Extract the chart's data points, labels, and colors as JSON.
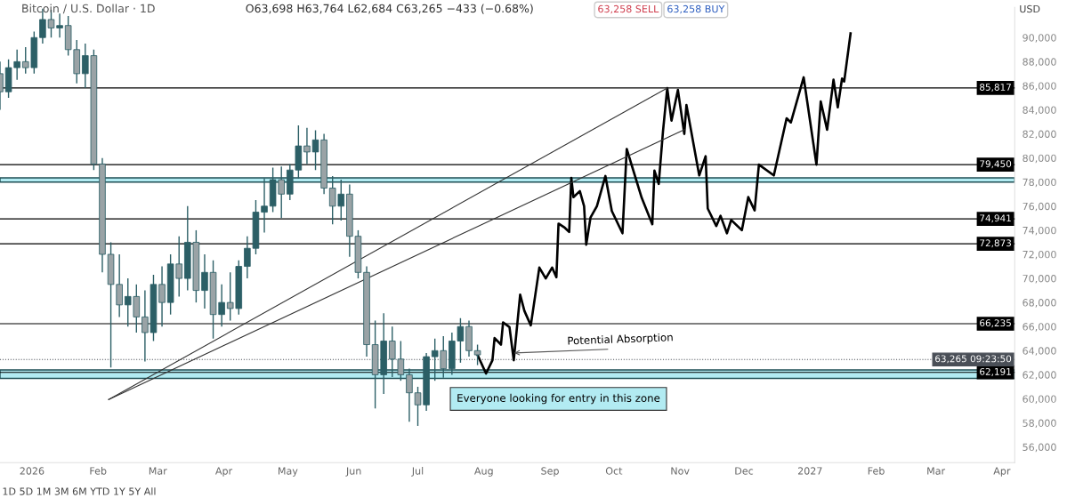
{
  "chart_data": {
    "type": "candlestick",
    "title": "Bitcoin / U.S. Dollar · 1D",
    "subtitle": "O63,698 H63,764 L62,684 C63,265 −433 (−0.68%)",
    "xlim": [
      "2025-12-17",
      "2027-04-07"
    ],
    "xticks": [
      {
        "value": "2026-01-01",
        "label": "2026"
      },
      {
        "value": "2026-02-01",
        "label": "Feb"
      },
      {
        "value": "2026-03-01",
        "label": "Mar"
      },
      {
        "value": "2026-04-01",
        "label": "Apr"
      },
      {
        "value": "2026-05-01",
        "label": "May"
      },
      {
        "value": "2026-06-01",
        "label": "Jun"
      },
      {
        "value": "2026-07-01",
        "label": "Jul"
      },
      {
        "value": "2026-08-01",
        "label": "Aug"
      },
      {
        "value": "2026-09-01",
        "label": "Sep"
      },
      {
        "value": "2026-10-01",
        "label": "Oct"
      },
      {
        "value": "2026-11-01",
        "label": "Nov"
      },
      {
        "value": "2026-12-01",
        "label": "Dec"
      },
      {
        "value": "2027-01-01",
        "label": "2027"
      },
      {
        "value": "2027-02-01",
        "label": "Feb"
      },
      {
        "value": "2027-03-01",
        "label": "Mar"
      },
      {
        "value": "2027-04-01",
        "label": "Apr"
      }
    ],
    "ylim": [
      54700,
      92500
    ],
    "yticks": [
      {
        "value": 56000,
        "label": "56,000"
      },
      {
        "value": 58000,
        "label": "58,000"
      },
      {
        "value": 60000,
        "label": "60,000"
      },
      {
        "value": 62000,
        "label": "62,000"
      },
      {
        "value": 64000,
        "label": "64,000"
      },
      {
        "value": 66000,
        "label": "66,000"
      },
      {
        "value": 68000,
        "label": "68,000"
      },
      {
        "value": 70000,
        "label": "70,000"
      },
      {
        "value": 72000,
        "label": "72,000"
      },
      {
        "value": 74000,
        "label": "74,000"
      },
      {
        "value": 76000,
        "label": "76,000"
      },
      {
        "value": 78000,
        "label": "78,000"
      },
      {
        "value": 80000,
        "label": "80,000"
      },
      {
        "value": 82000,
        "label": "82,000"
      },
      {
        "value": 84000,
        "label": "84,000"
      },
      {
        "value": 86000,
        "label": "86,000"
      },
      {
        "value": 88000,
        "label": "88,000"
      },
      {
        "value": 90000,
        "label": "90,000"
      }
    ],
    "grid": false,
    "series": [
      {
        "type": "candlestick",
        "color": "#2c5f66",
        "x": [
          "2025-12-17",
          "2025-12-21",
          "2025-12-25",
          "2025-12-29",
          "2026-01-02",
          "2026-01-06",
          "2026-01-10",
          "2026-01-14",
          "2026-01-18",
          "2026-01-22",
          "2026-01-26",
          "2026-01-30",
          "2026-02-03",
          "2026-02-07",
          "2026-02-11",
          "2026-02-15",
          "2026-02-19",
          "2026-02-23",
          "2026-02-27",
          "2026-03-03",
          "2026-03-07",
          "2026-03-11",
          "2026-03-15",
          "2026-03-19",
          "2026-03-23",
          "2026-03-27",
          "2026-03-31",
          "2026-04-04",
          "2026-04-08",
          "2026-04-12",
          "2026-04-16",
          "2026-04-20",
          "2026-04-24",
          "2026-04-28",
          "2026-05-02",
          "2026-05-06",
          "2026-05-10",
          "2026-05-14",
          "2026-05-18",
          "2026-05-22",
          "2026-05-26",
          "2026-05-30",
          "2026-06-03",
          "2026-06-07",
          "2026-06-11",
          "2026-06-15",
          "2026-06-19",
          "2026-06-23",
          "2026-06-27",
          "2026-07-01",
          "2026-07-05",
          "2026-07-09",
          "2026-07-13",
          "2026-07-17",
          "2026-07-21",
          "2026-07-25",
          "2026-07-29"
        ],
        "ohlc": [
          [
            87000,
            88000,
            84000,
            85500
          ],
          [
            85500,
            88200,
            85000,
            87500
          ],
          [
            87500,
            89000,
            86500,
            88000
          ],
          [
            88000,
            89200,
            87000,
            87500
          ],
          [
            87500,
            90500,
            87000,
            90000
          ],
          [
            90000,
            92400,
            89500,
            91500
          ],
          [
            91500,
            92300,
            90000,
            90800
          ],
          [
            90800,
            92000,
            90000,
            91000
          ],
          [
            91000,
            91800,
            88500,
            89000
          ],
          [
            89000,
            89800,
            86200,
            87000
          ],
          [
            87000,
            89500,
            85800,
            88500
          ],
          [
            88500,
            89000,
            79000,
            79500
          ],
          [
            79500,
            80000,
            70500,
            72000
          ],
          [
            72000,
            73000,
            62600,
            69500
          ],
          [
            69500,
            72000,
            66800,
            67800
          ],
          [
            67800,
            70000,
            66000,
            68500
          ],
          [
            68500,
            69500,
            65500,
            66800
          ],
          [
            66800,
            69000,
            63100,
            65500
          ],
          [
            65500,
            70300,
            64800,
            69500
          ],
          [
            69500,
            71000,
            66000,
            68000
          ],
          [
            68000,
            72000,
            67000,
            71200
          ],
          [
            71200,
            73500,
            68500,
            70000
          ],
          [
            70000,
            76000,
            69000,
            73000
          ],
          [
            73000,
            74000,
            68000,
            69000
          ],
          [
            69000,
            72000,
            67500,
            70500
          ],
          [
            70500,
            71500,
            65000,
            67000
          ],
          [
            67000,
            69500,
            66000,
            68000
          ],
          [
            68000,
            70500,
            66500,
            67500
          ],
          [
            67500,
            71500,
            67000,
            71000
          ],
          [
            71000,
            73500,
            70000,
            72500
          ],
          [
            72500,
            76500,
            72000,
            75500
          ],
          [
            75500,
            78300,
            73800,
            76000
          ],
          [
            76000,
            79200,
            75500,
            78200
          ],
          [
            78200,
            79300,
            75000,
            77000
          ],
          [
            77000,
            79500,
            76500,
            79000
          ],
          [
            79000,
            82700,
            78300,
            81000
          ],
          [
            81000,
            82500,
            79500,
            80500
          ],
          [
            80500,
            82300,
            79000,
            81500
          ],
          [
            81500,
            82000,
            77000,
            77500
          ],
          [
            77500,
            78500,
            74500,
            76000
          ],
          [
            76000,
            78200,
            74800,
            77000
          ],
          [
            77000,
            77800,
            71800,
            73500
          ],
          [
            73500,
            74000,
            70000,
            70500
          ],
          [
            70500,
            71000,
            63500,
            64500
          ],
          [
            64500,
            66500,
            59200,
            62000
          ],
          [
            62000,
            67100,
            60400,
            64800
          ],
          [
            64800,
            66000,
            61800,
            63300
          ],
          [
            63300,
            64800,
            61500,
            62000
          ],
          [
            62000,
            62500,
            58100,
            60500
          ],
          [
            60500,
            61000,
            57750,
            59500
          ],
          [
            59500,
            63800,
            59000,
            63500
          ],
          [
            63500,
            65000,
            61500,
            64000
          ],
          [
            64000,
            65200,
            61750,
            62500
          ],
          [
            62500,
            65500,
            62000,
            64800
          ],
          [
            64800,
            66700,
            63000,
            66000
          ],
          [
            66000,
            66500,
            63500,
            64000
          ],
          [
            64000,
            64500,
            62800,
            63650
          ]
        ]
      },
      {
        "type": "line",
        "color": "#000000",
        "x": [
          "2026-07-29",
          "2026-08-02",
          "2026-08-05",
          "2026-08-06",
          "2026-08-09",
          "2026-08-10",
          "2026-08-13",
          "2026-08-15",
          "2026-08-18",
          "2026-08-20",
          "2026-08-23",
          "2026-08-27",
          "2026-08-30",
          "2026-09-02",
          "2026-09-04",
          "2026-09-05",
          "2026-09-08",
          "2026-09-10",
          "2026-09-11",
          "2026-09-12",
          "2026-09-15",
          "2026-09-17",
          "2026-09-18",
          "2026-09-20",
          "2026-09-23",
          "2026-09-27",
          "2026-09-30",
          "2026-10-05",
          "2026-10-07",
          "2026-10-14",
          "2026-10-19",
          "2026-10-20",
          "2026-10-22",
          "2026-10-24",
          "2026-10-26",
          "2026-10-28",
          "2026-10-31",
          "2026-11-03",
          "2026-11-04",
          "2026-11-10",
          "2026-11-13",
          "2026-11-14",
          "2026-11-18",
          "2026-11-20",
          "2026-11-23",
          "2026-11-25",
          "2026-11-30",
          "2026-12-03",
          "2026-12-06",
          "2026-12-08",
          "2026-12-15",
          "2026-12-21",
          "2026-12-23",
          "2026-12-29",
          "2027-01-04",
          "2027-01-06",
          "2027-01-09",
          "2027-01-12",
          "2027-01-14",
          "2027-01-16",
          "2027-01-17",
          "2027-01-20"
        ],
        "values": [
          63650,
          62100,
          63200,
          65050,
          64500,
          66350,
          65950,
          63200,
          68650,
          67300,
          66100,
          70900,
          70000,
          70900,
          70100,
          74550,
          74200,
          73850,
          78350,
          76750,
          77250,
          76000,
          72800,
          75050,
          76000,
          78500,
          75600,
          73750,
          80750,
          76700,
          74500,
          78950,
          77850,
          82200,
          85800,
          83100,
          85650,
          82000,
          84400,
          78550,
          80150,
          75800,
          74350,
          75200,
          73750,
          74850,
          74000,
          76750,
          75650,
          79450,
          78550,
          83300,
          82950,
          86700,
          79450,
          84700,
          82350,
          86500,
          84200,
          86600,
          86350,
          90350
        ]
      },
      {
        "type": "line",
        "color": "#333333",
        "x": [
          "2026-02-06",
          "2026-10-26"
        ],
        "values": [
          59950,
          85800
        ]
      },
      {
        "type": "line",
        "color": "#333333",
        "x": [
          "2026-02-06",
          "2026-11-03"
        ],
        "values": [
          59950,
          82350
        ]
      }
    ],
    "ref_lines": [
      {
        "axis": "y",
        "value": 85817,
        "label": "85,817",
        "color": "#000000"
      },
      {
        "axis": "y",
        "value": 79450,
        "label": "79,450",
        "color": "#000000"
      },
      {
        "axis": "y",
        "value": 74941,
        "label": "74,941",
        "color": "#000000"
      },
      {
        "axis": "y",
        "value": 72873,
        "label": "72,873",
        "color": "#000000"
      },
      {
        "axis": "y",
        "value": 66235,
        "label": "66,235",
        "color": "#000000"
      },
      {
        "axis": "y",
        "value": 62191,
        "label": "62,191",
        "color": "#000000"
      },
      {
        "axis": "y",
        "value": 63265,
        "label": "63,265 09:23:50",
        "color": "#4a4f57",
        "line_style": "dotted"
      }
    ],
    "bands": [
      {
        "axis": "y",
        "from": 78000,
        "to": 78350,
        "color": "#b2ebf2"
      },
      {
        "axis": "y",
        "from": 61700,
        "to": 62400,
        "color": "#b2ebf2"
      }
    ],
    "annotations": [
      {
        "text": "Potential Absorption",
        "x": "2026-08-14",
        "y": 63800
      },
      "Everyone looking for entry in this zone",
      "USD",
      "63,258 SELL",
      "63,258 BUY",
      "1D 5D 1M 3M 6M YTD 1Y 5Y All"
    ]
  }
}
